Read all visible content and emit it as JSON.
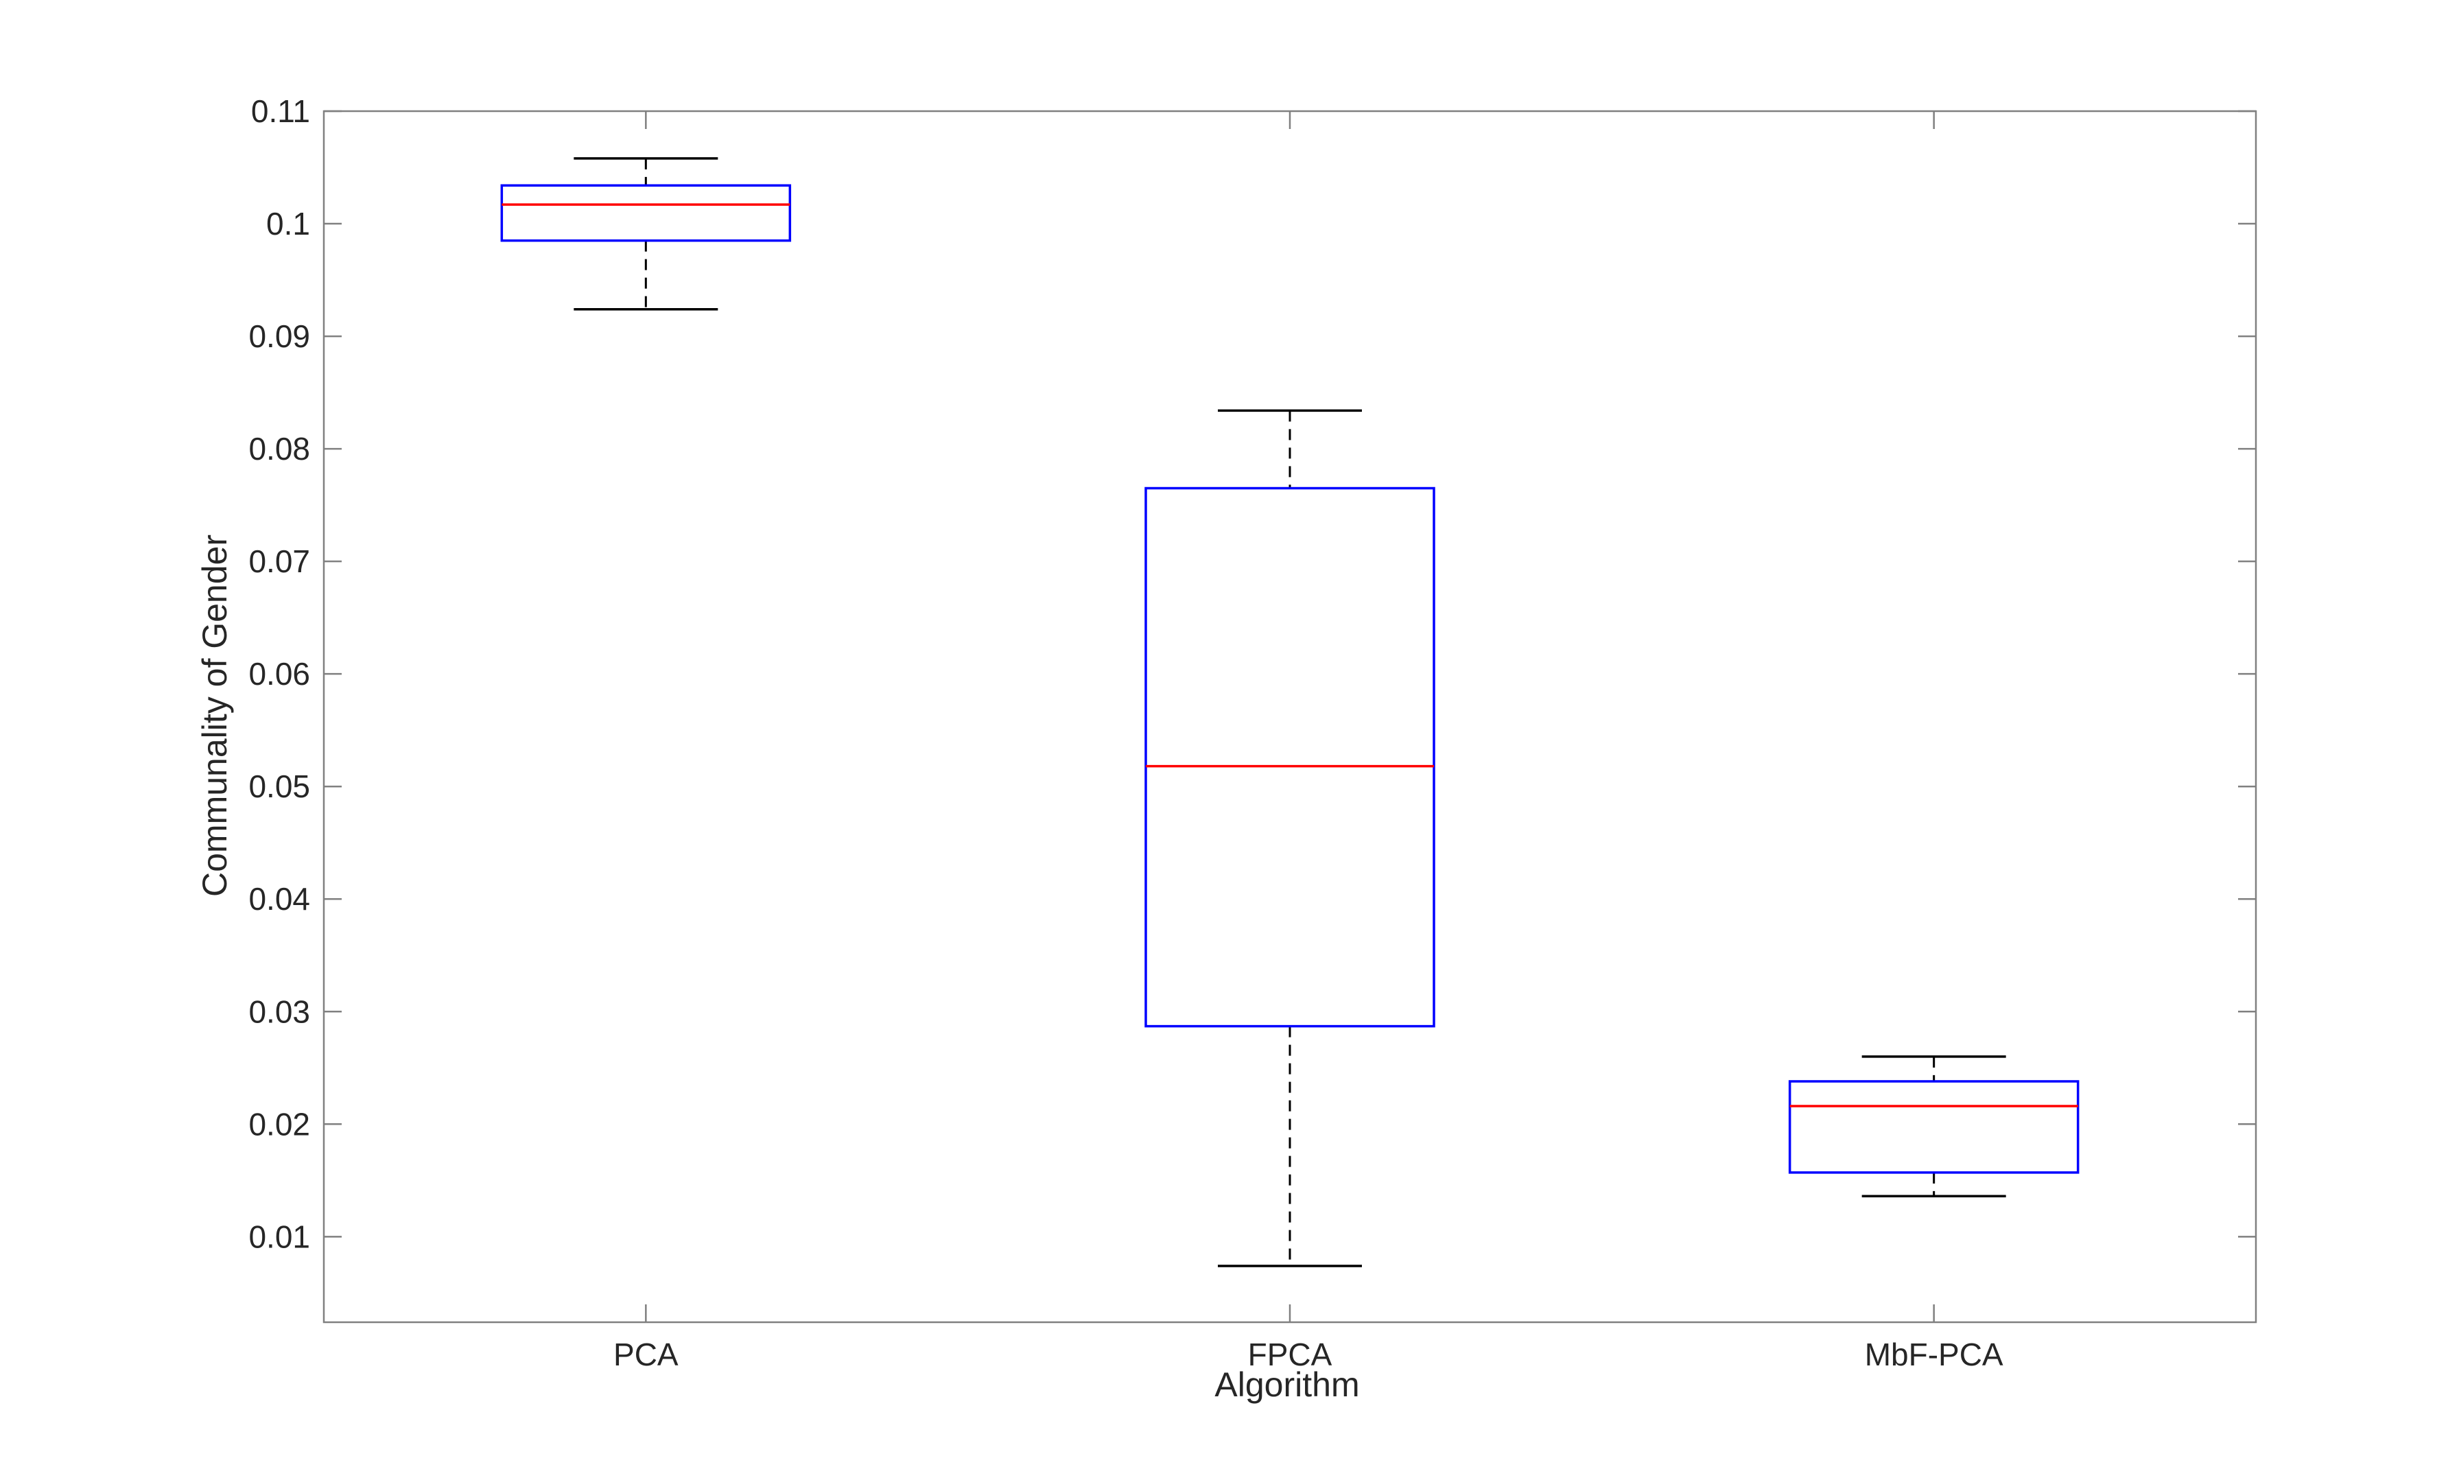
{
  "chart_data": {
    "type": "box",
    "title": "",
    "xlabel": "Algorithm",
    "ylabel": "Communality of Gender",
    "ylim": [
      0.0024,
      0.11
    ],
    "yticks": [
      0.01,
      0.02,
      0.03,
      0.04,
      0.05,
      0.06,
      0.07,
      0.08,
      0.09,
      0.1,
      0.11
    ],
    "ytick_labels": [
      "0.01",
      "0.02",
      "0.03",
      "0.04",
      "0.05",
      "0.06",
      "0.07",
      "0.08",
      "0.09",
      "0.1",
      "0.11"
    ],
    "grid": false,
    "categories": [
      "PCA",
      "FPCA",
      "MbF-PCA"
    ],
    "boxes": [
      {
        "category": "PCA",
        "whisker_low": 0.0924,
        "q1": 0.0985,
        "median": 0.1017,
        "q3": 0.1034,
        "whisker_high": 0.1058
      },
      {
        "category": "FPCA",
        "whisker_low": 0.0074,
        "q1": 0.0287,
        "median": 0.0518,
        "q3": 0.0765,
        "whisker_high": 0.0834
      },
      {
        "category": "MbF-PCA",
        "whisker_low": 0.0136,
        "q1": 0.0157,
        "median": 0.0216,
        "q3": 0.0238,
        "whisker_high": 0.026
      }
    ],
    "colors": {
      "box": "#0000ff",
      "median": "#ff0000",
      "whisker": "#000000",
      "axes": "#808080",
      "text": "#262626"
    }
  }
}
